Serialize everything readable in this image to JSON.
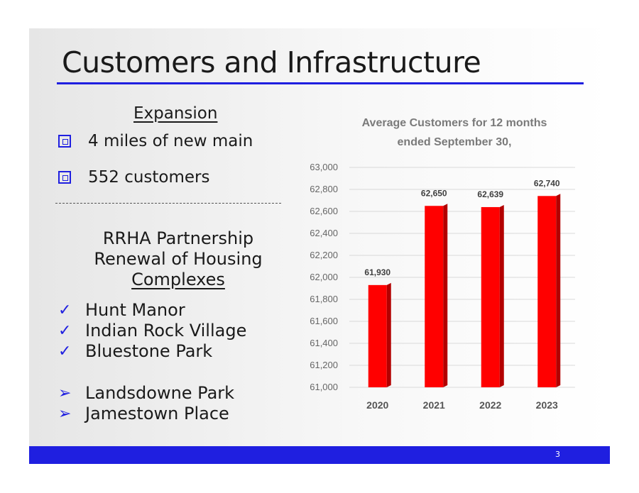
{
  "slide": {
    "title": "Customers and Infrastructure",
    "page_number": "3"
  },
  "expansion": {
    "heading": "Expansion",
    "items": [
      "4 miles of new main",
      "552 customers"
    ]
  },
  "rrha": {
    "line1": "RRHA Partnership",
    "line2": "Renewal of Housing",
    "line3": "Complexes",
    "completed": [
      "Hunt Manor",
      "Indian Rock Village",
      "Bluestone Park"
    ],
    "upcoming": [
      "Landsdowne Park",
      "Jamestown Place"
    ]
  },
  "colors": {
    "accent": "#1f1fe0",
    "bar": "#ff0000",
    "bar_side": "#b30000"
  },
  "chart_data": {
    "type": "bar",
    "title": "Average Customers for 12 months ended September 30,",
    "title_line1": "Average Customers for 12 months",
    "title_line2": "ended September 30,",
    "categories": [
      "2020",
      "2021",
      "2022",
      "2023"
    ],
    "values": [
      61930,
      62650,
      62639,
      62740
    ],
    "value_labels": [
      "61,930",
      "62,650",
      "62,639",
      "62,740"
    ],
    "ylim": [
      61000,
      63000
    ],
    "yticks": [
      "61,000",
      "61,200",
      "61,400",
      "61,600",
      "61,800",
      "62,000",
      "62,200",
      "62,400",
      "62,600",
      "62,800",
      "63,000"
    ],
    "grid": true,
    "legend": "none"
  }
}
